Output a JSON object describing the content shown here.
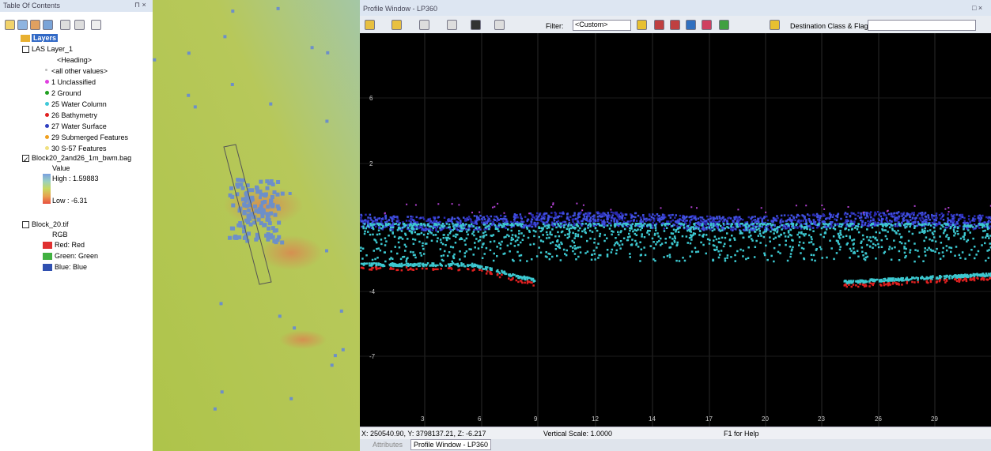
{
  "toc": {
    "title": "Table Of Contents",
    "root": "Layers",
    "las_layer": {
      "name": "LAS Layer_1",
      "heading": "<Heading>",
      "classes": [
        "<all other values>",
        "1 Unclassified",
        "2 Ground",
        "25 Water Column",
        "26 Bathymetry",
        "27 Water Surface",
        "29 Submerged Features",
        "30 S-57 Features"
      ]
    },
    "raster_layer": {
      "name": "Block20_2and26_1m_bwm.bag",
      "field": "Value",
      "high": "High : 1.59883",
      "low": "Low : -6.31"
    },
    "image_layer": {
      "name": "Block_20.tif",
      "field": "RGB",
      "bands": [
        "Red:  Red",
        "Green: Green",
        "Blue:  Blue"
      ]
    }
  },
  "profile": {
    "title": "Profile Window - LP360",
    "filter_label": "Filter:",
    "filter_value": "<Custom>",
    "destination_label": "Destination Class & Flags:",
    "y_labels": [
      "6",
      "2",
      "-4",
      "-7"
    ],
    "x_labels": [
      "3",
      "6",
      "9",
      "12",
      "14",
      "17",
      "20",
      "23",
      "26",
      "29"
    ]
  },
  "status": {
    "coords": "X: 250540.90, Y: 3798137.21, Z: -6.217",
    "scale": "Vertical Scale: 1.0000",
    "help": "F1 for Help"
  },
  "tabs": [
    "Attributes",
    "Profile Window - LP360"
  ]
}
